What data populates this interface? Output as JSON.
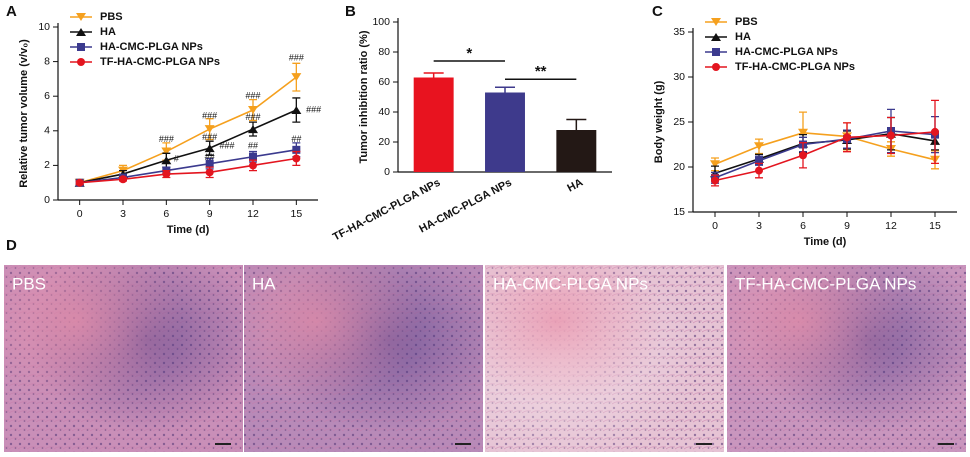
{
  "chart_data": [
    {
      "type": "line",
      "panel_label": "A",
      "xlabel": "Time (d)",
      "ylabel": "Relative tumor volume (v/v₀)",
      "x": [
        0,
        3,
        6,
        9,
        12,
        15
      ],
      "xlim": [
        -1.5,
        16.5
      ],
      "xticks": [
        0,
        3,
        6,
        9,
        12,
        15
      ],
      "ylim": [
        0,
        10
      ],
      "yticks": [
        0,
        2,
        4,
        6,
        8,
        10
      ],
      "series": [
        {
          "name": "PBS",
          "color": "#f5a01e",
          "marker": "v",
          "values": [
            1.0,
            1.7,
            2.8,
            4.1,
            5.2,
            7.1
          ],
          "errors": [
            0.1,
            0.3,
            0.5,
            0.6,
            0.6,
            0.8
          ]
        },
        {
          "name": "HA",
          "color": "#111111",
          "marker": "^",
          "values": [
            1.0,
            1.5,
            2.3,
            3.0,
            4.1,
            5.2
          ],
          "errors": [
            0.1,
            0.2,
            0.4,
            0.4,
            0.4,
            0.7
          ]
        },
        {
          "name": "HA-CMC-PLGA NPs",
          "color": "#3b3a8e",
          "marker": "s",
          "values": [
            1.0,
            1.3,
            1.7,
            2.1,
            2.5,
            2.9
          ],
          "errors": [
            0.1,
            0.1,
            0.2,
            0.3,
            0.3,
            0.4
          ]
        },
        {
          "name": "TF-HA-CMC-PLGA NPs",
          "color": "#e3151f",
          "marker": "o",
          "values": [
            1.0,
            1.2,
            1.5,
            1.6,
            2.0,
            2.4
          ],
          "errors": [
            0.1,
            0.1,
            0.2,
            0.3,
            0.3,
            0.4
          ]
        }
      ],
      "annotations": [
        {
          "text": "###",
          "x": 6,
          "y": 3.5
        },
        {
          "text": "#",
          "x": 6.7,
          "y": 2.35
        },
        {
          "text": "###",
          "x": 9,
          "y": 4.85
        },
        {
          "text": "###",
          "x": 9,
          "y": 3.6
        },
        {
          "text": "###",
          "x": 10.2,
          "y": 3.1
        },
        {
          "text": "##",
          "x": 9,
          "y": 2.45
        },
        {
          "text": "###",
          "x": 12,
          "y": 6.0
        },
        {
          "text": "###",
          "x": 12,
          "y": 4.75
        },
        {
          "text": "##",
          "x": 12,
          "y": 3.1
        },
        {
          "text": "###",
          "x": 15,
          "y": 8.2
        },
        {
          "text": "###",
          "x": 16.2,
          "y": 5.2
        },
        {
          "text": "##",
          "x": 15,
          "y": 3.5
        }
      ]
    },
    {
      "type": "bar",
      "panel_label": "B",
      "ylabel": "Tumor inhibition ratio (%)",
      "categories": [
        "TF-HA-CMC-PLGA NPs",
        "HA-CMC-PLGA NPs",
        "HA"
      ],
      "values": [
        63,
        53,
        28
      ],
      "errors": [
        3,
        3.5,
        7
      ],
      "colors": [
        "#e8131f",
        "#3e3a8c",
        "#231815"
      ],
      "ylim": [
        0,
        100
      ],
      "yticks": [
        0,
        20,
        40,
        60,
        80,
        100
      ],
      "significance": [
        {
          "from": 0,
          "to": 1,
          "label": "*"
        },
        {
          "from": 1,
          "to": 2,
          "label": "**"
        }
      ]
    },
    {
      "type": "line",
      "panel_label": "C",
      "xlabel": "Time (d)",
      "ylabel": "Body weight (g)",
      "x": [
        0,
        3,
        6,
        9,
        12,
        15
      ],
      "xlim": [
        -1.5,
        16.5
      ],
      "xticks": [
        0,
        3,
        6,
        9,
        12,
        15
      ],
      "ylim": [
        15,
        35
      ],
      "yticks": [
        15,
        20,
        25,
        30,
        35
      ],
      "series": [
        {
          "name": "PBS",
          "color": "#f5a01e",
          "marker": "v",
          "values": [
            20.3,
            22.3,
            23.8,
            23.4,
            22.0,
            20.8
          ],
          "errors": [
            0.7,
            0.8,
            2.3,
            1.5,
            0.8,
            1.0
          ]
        },
        {
          "name": "HA",
          "color": "#111111",
          "marker": "^",
          "values": [
            19.3,
            20.9,
            22.6,
            23.0,
            23.7,
            22.9
          ],
          "errors": [
            0.8,
            0.5,
            1.0,
            1.0,
            1.8,
            1.0
          ]
        },
        {
          "name": "HA-CMC-PLGA NPs",
          "color": "#3b3a8e",
          "marker": "s",
          "values": [
            18.8,
            20.7,
            22.5,
            23.1,
            24.0,
            23.6
          ],
          "errors": [
            0.6,
            0.5,
            0.8,
            1.0,
            2.4,
            2.0
          ]
        },
        {
          "name": "TF-HA-CMC-PLGA NPs",
          "color": "#e3151f",
          "marker": "o",
          "values": [
            18.5,
            19.6,
            21.3,
            23.3,
            23.5,
            23.9
          ],
          "errors": [
            0.6,
            0.8,
            1.4,
            1.6,
            2.0,
            3.5
          ]
        }
      ]
    }
  ],
  "images": {
    "panel_label": "D",
    "labels": [
      "PBS",
      "HA",
      "HA-CMC-PLGA NPs",
      "TF-HA-CMC-PLGA NPs"
    ]
  }
}
